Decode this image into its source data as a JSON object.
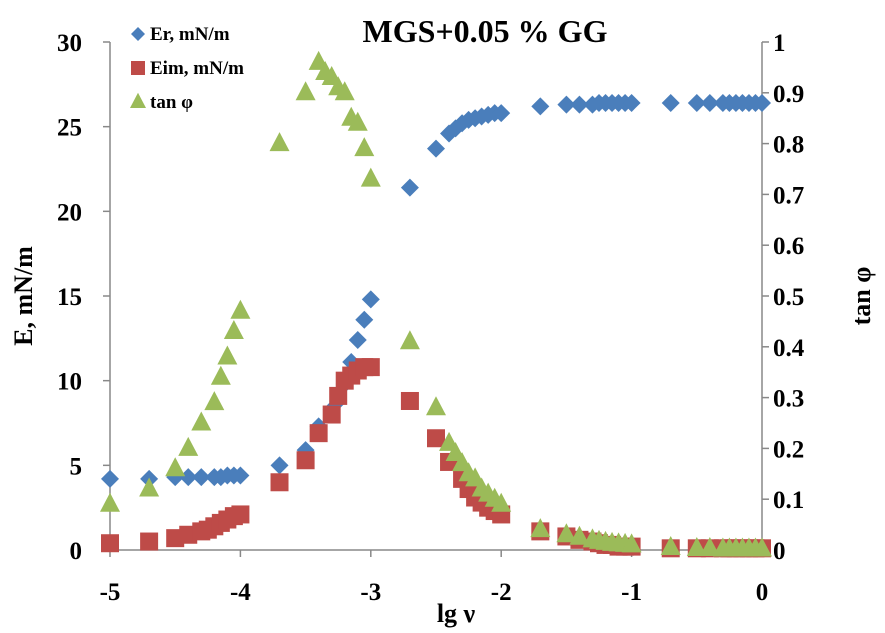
{
  "chart_data": {
    "type": "scatter",
    "title": "MGS+0.05 % GG",
    "xlabel": "lg ν",
    "ylabel": "E, mN/m",
    "y2label": "tan φ",
    "xlim": [
      -5,
      0
    ],
    "ylim": [
      0,
      30
    ],
    "y2lim": [
      0,
      1
    ],
    "xticks": [
      "-5",
      "-4",
      "-3",
      "-2",
      "-1",
      "0"
    ],
    "yticks": [
      "0",
      "5",
      "10",
      "15",
      "20",
      "25",
      "30"
    ],
    "y2ticks": [
      "0",
      "0.1",
      "0.2",
      "0.3",
      "0.4",
      "0.5",
      "0.6",
      "0.7",
      "0.8",
      "0.9",
      "1"
    ],
    "grid": false,
    "legend_position": "top-left",
    "series": [
      {
        "name": "Er, mN/m",
        "axis": "left",
        "marker": "diamond",
        "color": "#4a7ebb",
        "x": [
          -5,
          -4.7,
          -4.5,
          -4.4,
          -4.3,
          -4.2,
          -4.15,
          -4.1,
          -4.05,
          -4,
          -3.7,
          -3.5,
          -3.4,
          -3.3,
          -3.25,
          -3.2,
          -3.15,
          -3.1,
          -3.05,
          -3,
          -2.7,
          -2.5,
          -2.4,
          -2.35,
          -2.3,
          -2.25,
          -2.2,
          -2.15,
          -2.1,
          -2.05,
          -2,
          -1.7,
          -1.5,
          -1.4,
          -1.3,
          -1.25,
          -1.2,
          -1.15,
          -1.1,
          -1.05,
          -1,
          -0.7,
          -0.5,
          -0.4,
          -0.3,
          -0.25,
          -0.2,
          -0.15,
          -0.1,
          -0.05,
          0
        ],
        "y": [
          4.2,
          4.2,
          4.3,
          4.3,
          4.3,
          4.3,
          4.3,
          4.4,
          4.4,
          4.4,
          5.0,
          5.9,
          7.3,
          8.3,
          8.8,
          9.8,
          11.1,
          12.4,
          13.6,
          14.8,
          21.4,
          23.7,
          24.6,
          24.9,
          25.2,
          25.4,
          25.5,
          25.6,
          25.7,
          25.8,
          25.8,
          26.2,
          26.3,
          26.3,
          26.3,
          26.4,
          26.4,
          26.4,
          26.4,
          26.4,
          26.4,
          26.4,
          26.4,
          26.4,
          26.4,
          26.4,
          26.4,
          26.4,
          26.4,
          26.4,
          26.4
        ]
      },
      {
        "name": "Eim, mN/m",
        "axis": "left",
        "marker": "square",
        "color": "#be4b48",
        "x": [
          -5,
          -4.7,
          -4.5,
          -4.4,
          -4.3,
          -4.25,
          -4.2,
          -4.15,
          -4.1,
          -4.05,
          -4,
          -3.7,
          -3.5,
          -3.4,
          -3.3,
          -3.25,
          -3.2,
          -3.15,
          -3.1,
          -3.05,
          -3,
          -2.7,
          -2.5,
          -2.4,
          -2.3,
          -2.25,
          -2.2,
          -2.15,
          -2.1,
          -2.05,
          -2,
          -1.7,
          -1.5,
          -1.4,
          -1.3,
          -1.25,
          -1.2,
          -1.15,
          -1.1,
          -1.05,
          -1,
          -0.7,
          -0.5,
          -0.4,
          -0.3,
          -0.25,
          -0.2,
          -0.15,
          -0.1,
          -0.05,
          0
        ],
        "y": [
          0.4,
          0.5,
          0.7,
          0.9,
          1.1,
          1.2,
          1.4,
          1.6,
          1.8,
          2.0,
          2.1,
          4.0,
          5.3,
          6.9,
          8.0,
          9.1,
          10.0,
          10.3,
          10.6,
          10.8,
          10.8,
          8.8,
          6.6,
          5.2,
          4.2,
          3.6,
          3.1,
          2.8,
          2.5,
          2.3,
          2.1,
          1.1,
          0.8,
          0.6,
          0.5,
          0.4,
          0.3,
          0.3,
          0.2,
          0.2,
          0.2,
          0.1,
          0.1,
          0.1,
          0.1,
          0.1,
          0.1,
          0.1,
          0.1,
          0.1,
          0.1
        ]
      },
      {
        "name": "tan φ",
        "axis": "right",
        "marker": "triangle",
        "color": "#9bbb59",
        "x": [
          -5,
          -4.7,
          -4.5,
          -4.4,
          -4.3,
          -4.2,
          -4.15,
          -4.1,
          -4.05,
          -4,
          -3.7,
          -3.5,
          -3.4,
          -3.35,
          -3.3,
          -3.25,
          -3.2,
          -3.15,
          -3.1,
          -3.05,
          -3,
          -2.7,
          -2.5,
          -2.4,
          -2.35,
          -2.3,
          -2.25,
          -2.2,
          -2.15,
          -2.1,
          -2.05,
          -2,
          -1.7,
          -1.5,
          -1.4,
          -1.3,
          -1.25,
          -1.2,
          -1.15,
          -1.1,
          -1.05,
          -1,
          -0.7,
          -0.5,
          -0.4,
          -0.3,
          -0.25,
          -0.2,
          -0.15,
          -0.1,
          -0.05,
          0
        ],
        "y": [
          0.09,
          0.12,
          0.16,
          0.2,
          0.25,
          0.29,
          0.34,
          0.38,
          0.43,
          0.47,
          0.8,
          0.9,
          0.96,
          0.94,
          0.93,
          0.91,
          0.9,
          0.85,
          0.84,
          0.79,
          0.73,
          0.41,
          0.28,
          0.21,
          0.19,
          0.17,
          0.15,
          0.14,
          0.12,
          0.11,
          0.1,
          0.09,
          0.04,
          0.03,
          0.025,
          0.02,
          0.017,
          0.015,
          0.013,
          0.012,
          0.011,
          0.01,
          0.005,
          0.003,
          0.003,
          0.002,
          0.002,
          0.002,
          0.002,
          0.002,
          0.002,
          0.002
        ]
      }
    ]
  }
}
